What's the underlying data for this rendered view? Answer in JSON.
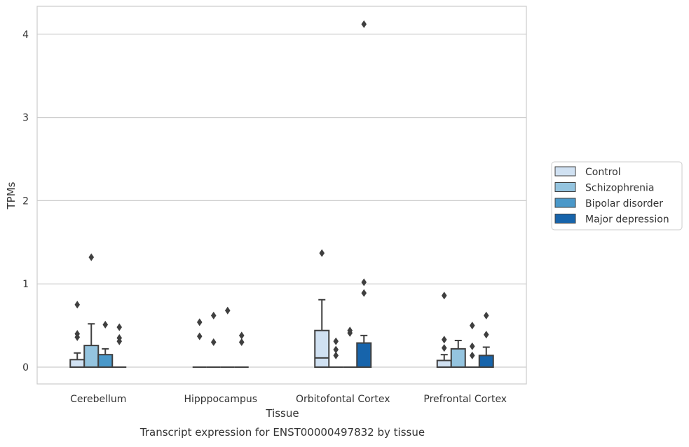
{
  "chart_data": {
    "type": "box",
    "title": "Transcript expression for ENST00000497832 by tissue",
    "xlabel": "Tissue",
    "ylabel": "TPMs",
    "ylim": [
      -0.2,
      4.32
    ],
    "yticks": [
      0,
      1,
      2,
      3,
      4
    ],
    "grid": true,
    "legend_position": "right",
    "categories": [
      "Cerebellum",
      "Hipppocampus",
      "Orbitofontal Cortex",
      "Prefrontal Cortex"
    ],
    "series": [
      {
        "name": "Control",
        "color": "#d0e1f2",
        "boxes": [
          {
            "q1": 0,
            "median": 0,
            "q3": 0.09,
            "whislo": 0,
            "whishi": 0.17,
            "outliers": [
              0.36,
              0.4,
              0.75
            ]
          },
          {
            "q1": 0,
            "median": 0,
            "q3": 0,
            "whislo": 0,
            "whishi": 0,
            "outliers": [
              0.37,
              0.54
            ]
          },
          {
            "q1": 0,
            "median": 0.11,
            "q3": 0.44,
            "whislo": 0,
            "whishi": 0.81,
            "outliers": [
              1.37
            ]
          },
          {
            "q1": 0,
            "median": 0,
            "q3": 0.08,
            "whislo": 0,
            "whishi": 0.15,
            "outliers": [
              0.23,
              0.33,
              0.86
            ]
          }
        ]
      },
      {
        "name": "Schizophrenia",
        "color": "#94c4df",
        "boxes": [
          {
            "q1": 0,
            "median": 0,
            "q3": 0.26,
            "whislo": 0,
            "whishi": 0.52,
            "outliers": [
              1.32
            ]
          },
          {
            "q1": 0,
            "median": 0,
            "q3": 0,
            "whislo": 0,
            "whishi": 0,
            "outliers": [
              0.3,
              0.62
            ]
          },
          {
            "q1": 0,
            "median": 0,
            "q3": 0,
            "whislo": 0,
            "whishi": 0,
            "outliers": [
              0.14,
              0.21,
              0.31
            ]
          },
          {
            "q1": 0,
            "median": 0,
            "q3": 0.22,
            "whislo": 0,
            "whishi": 0.32,
            "outliers": []
          }
        ]
      },
      {
        "name": "Bipolar disorder",
        "color": "#4a98c9",
        "boxes": [
          {
            "q1": 0,
            "median": 0,
            "q3": 0.15,
            "whislo": 0,
            "whishi": 0.22,
            "outliers": [
              0.51
            ]
          },
          {
            "q1": 0,
            "median": 0,
            "q3": 0,
            "whislo": 0,
            "whishi": 0,
            "outliers": [
              0.68
            ]
          },
          {
            "q1": 0,
            "median": 0,
            "q3": 0,
            "whislo": 0,
            "whishi": 0,
            "outliers": [
              0.41,
              0.44
            ]
          },
          {
            "q1": 0,
            "median": 0,
            "q3": 0,
            "whislo": 0,
            "whishi": 0,
            "outliers": [
              0.14,
              0.25,
              0.5
            ]
          }
        ]
      },
      {
        "name": "Major depression",
        "color": "#1764ab",
        "boxes": [
          {
            "q1": 0,
            "median": 0,
            "q3": 0,
            "whislo": 0,
            "whishi": 0,
            "outliers": [
              0.31,
              0.35,
              0.48
            ]
          },
          {
            "q1": 0,
            "median": 0,
            "q3": 0,
            "whislo": 0,
            "whishi": 0,
            "outliers": [
              0.3,
              0.38
            ]
          },
          {
            "q1": 0,
            "median": 0,
            "q3": 0.29,
            "whislo": 0,
            "whishi": 0.38,
            "outliers": [
              0.89,
              1.02,
              4.12
            ]
          },
          {
            "q1": 0,
            "median": 0,
            "q3": 0.14,
            "whislo": 0,
            "whishi": 0.24,
            "outliers": [
              0.39,
              0.62
            ]
          }
        ]
      }
    ]
  }
}
